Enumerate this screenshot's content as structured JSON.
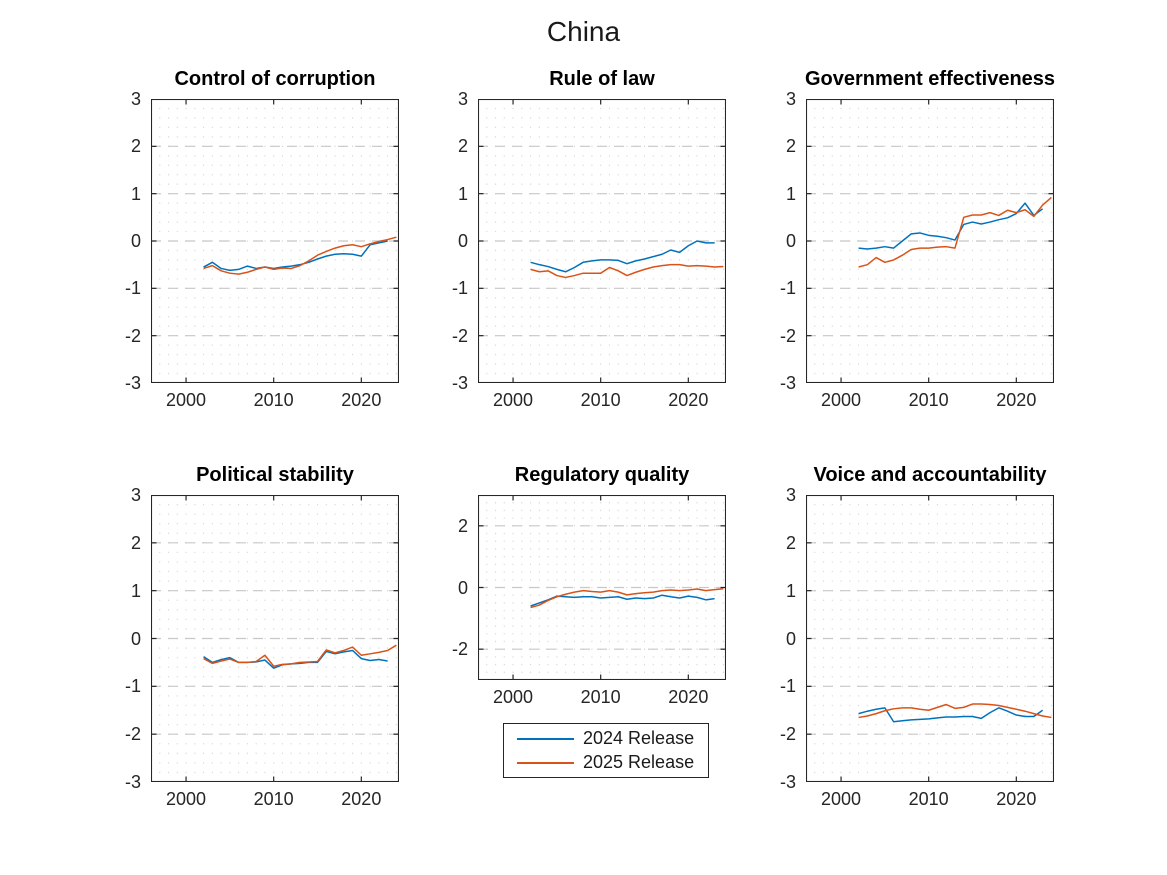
{
  "figure": {
    "title": "China"
  },
  "legend": {
    "position": "below-regulatory-quality-subplot",
    "items": [
      {
        "label": "2024 Release",
        "color": "#0072BD"
      },
      {
        "label": "2025 Release",
        "color": "#D95319"
      }
    ]
  },
  "colors": {
    "series_blue": "#0072BD",
    "series_orange": "#D95319",
    "grid_major": "#c8c8c8",
    "grid_minor_dots": "#d9d9d9",
    "axis": "#262626"
  },
  "chart_data": [
    {
      "type": "line",
      "title": "Control of corruption",
      "xlabel": "",
      "ylabel": "",
      "xlim": [
        1996,
        2024.3
      ],
      "ylim": [
        -3,
        3
      ],
      "xticks": [
        2000,
        2010,
        2020
      ],
      "yticks": [
        -3,
        -2,
        -1,
        0,
        1,
        2,
        3
      ],
      "y_minor_step": 0.2,
      "grid": "y-major-dashed, minor-dotted-mesh",
      "series": [
        {
          "name": "2024 Release",
          "color": "#0072BD",
          "start_year": 2002,
          "values": [
            -0.55,
            -0.45,
            -0.58,
            -0.62,
            -0.6,
            -0.53,
            -0.58,
            -0.55,
            -0.58,
            -0.55,
            -0.53,
            -0.5,
            -0.45,
            -0.38,
            -0.32,
            -0.28,
            -0.27,
            -0.28,
            -0.32,
            -0.08,
            -0.04,
            0.0
          ]
        },
        {
          "name": "2025 Release",
          "color": "#D95319",
          "start_year": 2002,
          "values": [
            -0.58,
            -0.52,
            -0.63,
            -0.68,
            -0.7,
            -0.66,
            -0.6,
            -0.55,
            -0.6,
            -0.57,
            -0.58,
            -0.52,
            -0.42,
            -0.3,
            -0.22,
            -0.15,
            -0.1,
            -0.08,
            -0.12,
            -0.06,
            -0.01,
            0.03,
            0.08
          ]
        }
      ]
    },
    {
      "type": "line",
      "title": "Rule of law",
      "xlabel": "",
      "ylabel": "",
      "xlim": [
        1996,
        2024.3
      ],
      "ylim": [
        -3,
        3
      ],
      "xticks": [
        2000,
        2010,
        2020
      ],
      "yticks": [
        -3,
        -2,
        -1,
        0,
        1,
        2,
        3
      ],
      "y_minor_step": 0.2,
      "grid": "y-major-dashed, minor-dotted-mesh",
      "series": [
        {
          "name": "2024 Release",
          "color": "#0072BD",
          "start_year": 2002,
          "values": [
            -0.45,
            -0.5,
            -0.54,
            -0.6,
            -0.65,
            -0.56,
            -0.45,
            -0.42,
            -0.4,
            -0.4,
            -0.41,
            -0.48,
            -0.42,
            -0.38,
            -0.33,
            -0.28,
            -0.19,
            -0.24,
            -0.1,
            0.0,
            -0.04,
            -0.04
          ]
        },
        {
          "name": "2025 Release",
          "color": "#D95319",
          "start_year": 2002,
          "values": [
            -0.6,
            -0.65,
            -0.63,
            -0.73,
            -0.77,
            -0.73,
            -0.68,
            -0.68,
            -0.68,
            -0.56,
            -0.63,
            -0.73,
            -0.66,
            -0.6,
            -0.55,
            -0.52,
            -0.5,
            -0.5,
            -0.53,
            -0.52,
            -0.53,
            -0.55,
            -0.54
          ]
        }
      ]
    },
    {
      "type": "line",
      "title": "Government effectiveness",
      "xlabel": "",
      "ylabel": "",
      "xlim": [
        1996,
        2024.3
      ],
      "ylim": [
        -3,
        3
      ],
      "xticks": [
        2000,
        2010,
        2020
      ],
      "yticks": [
        -3,
        -2,
        -1,
        0,
        1,
        2,
        3
      ],
      "y_minor_step": 0.2,
      "grid": "y-major-dashed, minor-dotted-mesh",
      "series": [
        {
          "name": "2024 Release",
          "color": "#0072BD",
          "start_year": 2002,
          "values": [
            -0.15,
            -0.17,
            -0.15,
            -0.12,
            -0.15,
            0.0,
            0.15,
            0.17,
            0.12,
            0.1,
            0.07,
            0.02,
            0.35,
            0.4,
            0.36,
            0.4,
            0.45,
            0.49,
            0.58,
            0.8,
            0.54,
            0.68
          ]
        },
        {
          "name": "2025 Release",
          "color": "#D95319",
          "start_year": 2002,
          "values": [
            -0.55,
            -0.5,
            -0.35,
            -0.45,
            -0.4,
            -0.3,
            -0.18,
            -0.15,
            -0.15,
            -0.13,
            -0.12,
            -0.15,
            0.5,
            0.55,
            0.55,
            0.6,
            0.54,
            0.65,
            0.6,
            0.66,
            0.52,
            0.76,
            0.92
          ]
        }
      ]
    },
    {
      "type": "line",
      "title": "Political stability",
      "xlabel": "",
      "ylabel": "",
      "xlim": [
        1996,
        2024.3
      ],
      "ylim": [
        -3,
        3
      ],
      "xticks": [
        2000,
        2010,
        2020
      ],
      "yticks": [
        -3,
        -2,
        -1,
        0,
        1,
        2,
        3
      ],
      "y_minor_step": 0.2,
      "grid": "y-major-dashed, minor-dotted-mesh",
      "series": [
        {
          "name": "2024 Release",
          "color": "#0072BD",
          "start_year": 2002,
          "values": [
            -0.38,
            -0.5,
            -0.44,
            -0.4,
            -0.5,
            -0.5,
            -0.49,
            -0.45,
            -0.62,
            -0.55,
            -0.53,
            -0.52,
            -0.5,
            -0.5,
            -0.27,
            -0.32,
            -0.28,
            -0.25,
            -0.42,
            -0.46,
            -0.44,
            -0.47
          ]
        },
        {
          "name": "2025 Release",
          "color": "#D95319",
          "start_year": 2002,
          "values": [
            -0.42,
            -0.52,
            -0.47,
            -0.43,
            -0.5,
            -0.5,
            -0.48,
            -0.35,
            -0.58,
            -0.54,
            -0.53,
            -0.5,
            -0.49,
            -0.48,
            -0.24,
            -0.3,
            -0.25,
            -0.18,
            -0.35,
            -0.32,
            -0.29,
            -0.25,
            -0.14
          ]
        }
      ]
    },
    {
      "type": "line",
      "title": "Regulatory quality",
      "xlabel": "",
      "ylabel": "",
      "xlim": [
        1996,
        2024.3
      ],
      "ylim": [
        -3,
        3
      ],
      "xticks": [
        2000,
        2010,
        2020
      ],
      "yticks": [
        -2,
        0,
        2
      ],
      "y_minor_step": 0.25,
      "grid": "y-major-dashed, minor-dotted-mesh",
      "series": [
        {
          "name": "2024 Release",
          "color": "#0072BD",
          "start_year": 2002,
          "values": [
            -0.6,
            -0.5,
            -0.4,
            -0.28,
            -0.3,
            -0.32,
            -0.3,
            -0.3,
            -0.34,
            -0.32,
            -0.3,
            -0.38,
            -0.34,
            -0.36,
            -0.34,
            -0.25,
            -0.3,
            -0.34,
            -0.28,
            -0.32,
            -0.4,
            -0.36
          ]
        },
        {
          "name": "2025 Release",
          "color": "#D95319",
          "start_year": 2002,
          "values": [
            -0.65,
            -0.57,
            -0.42,
            -0.3,
            -0.22,
            -0.15,
            -0.1,
            -0.13,
            -0.15,
            -0.1,
            -0.15,
            -0.24,
            -0.2,
            -0.17,
            -0.15,
            -0.1,
            -0.08,
            -0.1,
            -0.08,
            -0.05,
            -0.1,
            -0.07,
            -0.04
          ]
        }
      ]
    },
    {
      "type": "line",
      "title": "Voice and accountability",
      "xlabel": "",
      "ylabel": "",
      "xlim": [
        1996,
        2024.3
      ],
      "ylim": [
        -3,
        3
      ],
      "xticks": [
        2000,
        2010,
        2020
      ],
      "yticks": [
        -3,
        -2,
        -1,
        0,
        1,
        2,
        3
      ],
      "y_minor_step": 0.2,
      "grid": "y-major-dashed, minor-dotted-mesh",
      "series": [
        {
          "name": "2024 Release",
          "color": "#0072BD",
          "start_year": 2002,
          "values": [
            -1.57,
            -1.52,
            -1.48,
            -1.45,
            -1.74,
            -1.72,
            -1.7,
            -1.69,
            -1.68,
            -1.66,
            -1.64,
            -1.64,
            -1.63,
            -1.63,
            -1.67,
            -1.55,
            -1.45,
            -1.52,
            -1.6,
            -1.63,
            -1.63,
            -1.5
          ]
        },
        {
          "name": "2025 Release",
          "color": "#D95319",
          "start_year": 2002,
          "values": [
            -1.65,
            -1.62,
            -1.57,
            -1.51,
            -1.47,
            -1.45,
            -1.45,
            -1.48,
            -1.5,
            -1.44,
            -1.38,
            -1.46,
            -1.44,
            -1.37,
            -1.37,
            -1.38,
            -1.4,
            -1.44,
            -1.48,
            -1.52,
            -1.57,
            -1.62,
            -1.65
          ]
        }
      ]
    }
  ]
}
